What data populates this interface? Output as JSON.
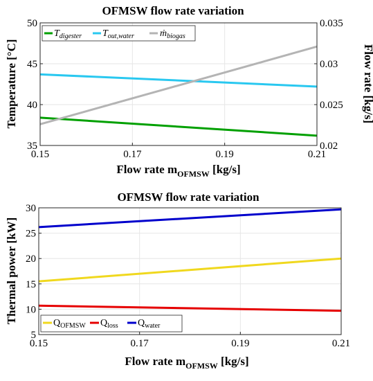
{
  "colors": {
    "green": "#00a000",
    "cyan": "#29c8f0",
    "gray": "#b4b4b4",
    "yellow": "#f0d81e",
    "red": "#e60000",
    "blue": "#0000cc"
  },
  "chart_data": [
    {
      "type": "line",
      "title": "OFMSW flow rate variation",
      "xlabel": {
        "main": "Flow rate m",
        "sub": "OFMSW",
        "unit": " [kg/s]"
      },
      "ylabel": "Temperature [°C]",
      "y2label": "Flow rate [kg/s]",
      "xlim": [
        0.15,
        0.21
      ],
      "ylim": [
        35,
        50
      ],
      "y2lim": [
        0.02,
        0.035
      ],
      "xticks": [
        "0.15",
        "0.17",
        "0.19",
        "0.21"
      ],
      "xtick_values": [
        0.15,
        0.17,
        0.19,
        0.21
      ],
      "yticks": [
        "35",
        "40",
        "45",
        "50"
      ],
      "ytick_values": [
        35,
        40,
        45,
        50
      ],
      "y2ticks": [
        "0.02",
        "0.025",
        "0.03",
        "0.035"
      ],
      "y2tick_values": [
        0.02,
        0.025,
        0.03,
        0.035
      ],
      "grid": true,
      "legend_position": "top-left",
      "series": [
        {
          "name": "T",
          "sub": "digester",
          "axis": "left",
          "color": "#00a000",
          "x": [
            0.15,
            0.21
          ],
          "y": [
            38.4,
            36.2
          ]
        },
        {
          "name": "T",
          "sub": "out,water",
          "axis": "left",
          "color": "#29c8f0",
          "x": [
            0.15,
            0.21
          ],
          "y": [
            43.7,
            42.2
          ]
        },
        {
          "name": "ṁ",
          "sub": "biogas",
          "axis": "right",
          "color": "#b4b4b4",
          "x": [
            0.15,
            0.21
          ],
          "y": [
            0.0226,
            0.0321
          ]
        }
      ]
    },
    {
      "type": "line",
      "title": "OFMSW flow rate variation",
      "xlabel": {
        "main": "Flow rate m",
        "sub": "OFMSW",
        "unit": " [kg/s]"
      },
      "ylabel": "Thermal power [kW]",
      "xlim": [
        0.15,
        0.21
      ],
      "ylim": [
        5,
        30
      ],
      "xticks": [
        "0.15",
        "0.17",
        "0.19",
        "0.21"
      ],
      "xtick_values": [
        0.15,
        0.17,
        0.19,
        0.21
      ],
      "yticks": [
        "5",
        "10",
        "15",
        "20",
        "25",
        "30"
      ],
      "ytick_values": [
        5,
        10,
        15,
        20,
        25,
        30
      ],
      "grid": true,
      "legend_position": "bottom-left",
      "series": [
        {
          "name": "Q",
          "sub": "OFMSW",
          "color": "#f0d81e",
          "x": [
            0.15,
            0.21
          ],
          "y": [
            15.5,
            20.0
          ]
        },
        {
          "name": "Q",
          "sub": "loss",
          "color": "#e60000",
          "x": [
            0.15,
            0.21
          ],
          "y": [
            10.7,
            9.7
          ]
        },
        {
          "name": "Q",
          "sub": "water",
          "color": "#0000cc",
          "x": [
            0.15,
            0.21
          ],
          "y": [
            26.2,
            29.7
          ]
        }
      ]
    }
  ]
}
